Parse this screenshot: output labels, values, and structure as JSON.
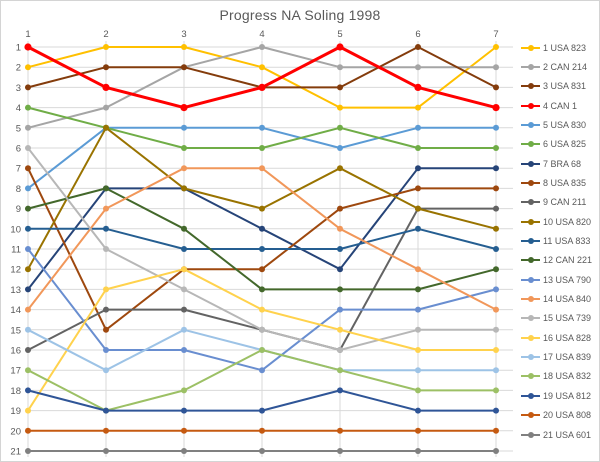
{
  "chart_data": {
    "type": "line",
    "title": "Progress NA Soling 1998",
    "xlabel": "",
    "ylabel": "",
    "x": [
      1,
      2,
      3,
      4,
      5,
      6,
      7
    ],
    "x_tick_labels": [
      "1",
      "2",
      "3",
      "4",
      "5",
      "6",
      "7"
    ],
    "y_tick_labels": [
      "1",
      "2",
      "3",
      "4",
      "5",
      "6",
      "7",
      "8",
      "9",
      "10",
      "11",
      "12",
      "13",
      "14",
      "15",
      "16",
      "17",
      "18",
      "19",
      "20",
      "21"
    ],
    "ylim": [
      1,
      21
    ],
    "y_axis_inverted": true,
    "grid": "on",
    "legend_position": "right",
    "marker": "circle",
    "series": [
      {
        "name": "1 USA 823",
        "color": "#FFC000",
        "width": 2,
        "values": [
          2,
          1,
          1,
          2,
          4,
          4,
          1
        ]
      },
      {
        "name": "2 CAN 214",
        "color": "#A5A5A5",
        "width": 2,
        "values": [
          5,
          4,
          2,
          1,
          2,
          2,
          2
        ]
      },
      {
        "name": "3 USA 831",
        "color": "#843C0C",
        "width": 2,
        "values": [
          3,
          2,
          2,
          3,
          3,
          1,
          3
        ]
      },
      {
        "name": "4 CAN 1",
        "color": "#FF0000",
        "width": 3,
        "values": [
          1,
          3,
          4,
          3,
          1,
          3,
          4
        ]
      },
      {
        "name": "5 USA 830",
        "color": "#5B9BD5",
        "width": 2,
        "values": [
          8,
          5,
          5,
          5,
          6,
          5,
          5
        ]
      },
      {
        "name": "6 USA 825",
        "color": "#70AD47",
        "width": 2,
        "values": [
          4,
          5,
          6,
          6,
          5,
          6,
          6
        ]
      },
      {
        "name": "7 BRA 68",
        "color": "#264478",
        "width": 2,
        "values": [
          13,
          8,
          8,
          10,
          12,
          7,
          7
        ]
      },
      {
        "name": "8 USA 835",
        "color": "#9E480E",
        "width": 2,
        "values": [
          7,
          15,
          12,
          12,
          9,
          8,
          8
        ]
      },
      {
        "name": "9 CAN 211",
        "color": "#636363",
        "width": 2,
        "values": [
          16,
          14,
          14,
          15,
          16,
          9,
          9
        ]
      },
      {
        "name": "10 USA 820",
        "color": "#997300",
        "width": 2,
        "values": [
          12,
          5,
          8,
          9,
          7,
          9,
          10
        ]
      },
      {
        "name": "11 USA 833",
        "color": "#255E91",
        "width": 2,
        "values": [
          10,
          10,
          11,
          11,
          11,
          10,
          11
        ]
      },
      {
        "name": "12 CAN 221",
        "color": "#43682B",
        "width": 2,
        "values": [
          9,
          8,
          10,
          13,
          13,
          13,
          12
        ]
      },
      {
        "name": "13 USA 790",
        "color": "#698ED0",
        "width": 2,
        "values": [
          11,
          16,
          16,
          17,
          14,
          14,
          13
        ]
      },
      {
        "name": "14 USA 840",
        "color": "#F1975A",
        "width": 2,
        "values": [
          14,
          9,
          7,
          7,
          10,
          12,
          14
        ]
      },
      {
        "name": "15 USA 739",
        "color": "#B7B7B7",
        "width": 2,
        "values": [
          6,
          11,
          13,
          15,
          16,
          15,
          15
        ]
      },
      {
        "name": "16 USA 828",
        "color": "#FFD24D",
        "width": 2,
        "values": [
          19,
          13,
          12,
          14,
          15,
          16,
          16
        ]
      },
      {
        "name": "17 USA 839",
        "color": "#9DC3E6",
        "width": 2,
        "values": [
          15,
          17,
          15,
          16,
          17,
          17,
          17
        ]
      },
      {
        "name": "18 USA 832",
        "color": "#9CC065",
        "width": 2,
        "values": [
          17,
          19,
          18,
          16,
          17,
          18,
          18
        ]
      },
      {
        "name": "19 USA 812",
        "color": "#2F5597",
        "width": 2,
        "values": [
          18,
          19,
          19,
          19,
          18,
          19,
          19
        ]
      },
      {
        "name": "20 USA 808",
        "color": "#C55A11",
        "width": 2,
        "values": [
          20,
          20,
          20,
          20,
          20,
          20,
          20
        ]
      },
      {
        "name": "21 USA 601",
        "color": "#808080",
        "width": 2,
        "values": [
          21,
          21,
          21,
          21,
          21,
          21,
          21
        ]
      }
    ]
  }
}
